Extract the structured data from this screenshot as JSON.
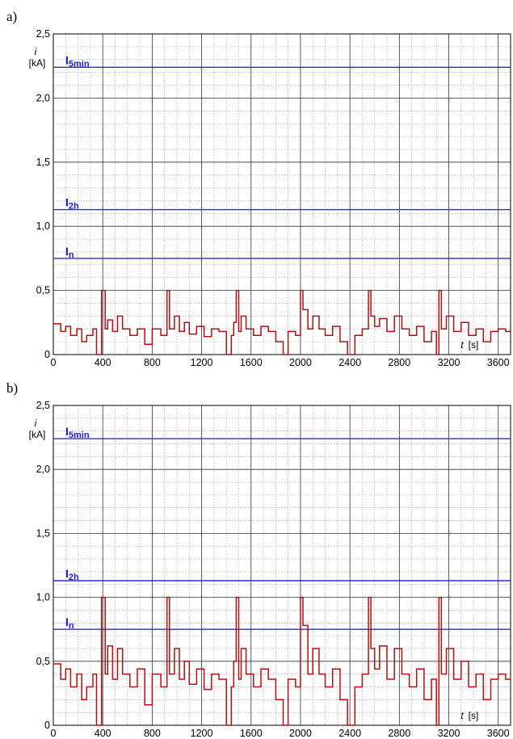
{
  "chart_data": [
    {
      "type": "line",
      "panel_label": "a)",
      "xlabel_var": "t",
      "xlabel_unit": "[s]",
      "ylabel_var": "i",
      "ylabel_unit": "[kA]",
      "xlim": [
        0,
        3700
      ],
      "ylim": [
        0,
        2.5
      ],
      "x_ticks": [
        0,
        400,
        800,
        1200,
        1600,
        2000,
        2400,
        2800,
        3200,
        3600
      ],
      "x_tick_labels": [
        "0",
        "400",
        "800",
        "1200",
        "1600",
        "2000",
        "2400",
        "2800",
        "3200",
        "3600"
      ],
      "y_ticks": [
        0,
        0.5,
        1.0,
        1.5,
        2.0,
        2.5
      ],
      "y_tick_labels": [
        "0",
        "0,5",
        "1,0",
        "1,5",
        "2,0",
        "2,5"
      ],
      "grid": true,
      "reference_lines": [
        {
          "main": "I",
          "sub": "5min",
          "value": 2.24
        },
        {
          "main": "I",
          "sub": "2h",
          "value": 1.13
        },
        {
          "main": "I",
          "sub": "n",
          "value": 0.75
        }
      ],
      "series": [
        {
          "color": "#b01010",
          "x": [
            0,
            60,
            100,
            140,
            190,
            230,
            270,
            320,
            350,
            380,
            390,
            420,
            440,
            480,
            520,
            560,
            620,
            680,
            740,
            800,
            870,
            920,
            940,
            980,
            1020,
            1060,
            1100,
            1160,
            1220,
            1280,
            1340,
            1400,
            1440,
            1460,
            1480,
            1500,
            1520,
            1560,
            1620,
            1680,
            1740,
            1800,
            1860,
            1900,
            1960,
            2000,
            2020,
            2060,
            2100,
            2150,
            2200,
            2260,
            2320,
            2380,
            2440,
            2500,
            2550,
            2570,
            2600,
            2640,
            2700,
            2760,
            2820,
            2880,
            2940,
            3000,
            3060,
            3100,
            3120,
            3140,
            3180,
            3240,
            3300,
            3360,
            3420,
            3480,
            3540,
            3600,
            3660,
            3700
          ],
          "y": [
            0.24,
            0.18,
            0.22,
            0.15,
            0.2,
            0.1,
            0.15,
            0.2,
            0.0,
            0.0,
            0.5,
            0.2,
            0.27,
            0.18,
            0.3,
            0.2,
            0.15,
            0.2,
            0.08,
            0.2,
            0.15,
            0.5,
            0.2,
            0.3,
            0.18,
            0.25,
            0.16,
            0.22,
            0.14,
            0.2,
            0.18,
            0.0,
            0.15,
            0.25,
            0.5,
            0.18,
            0.3,
            0.2,
            0.15,
            0.22,
            0.18,
            0.1,
            0.0,
            0.18,
            0.15,
            0.5,
            0.35,
            0.2,
            0.3,
            0.2,
            0.15,
            0.22,
            0.1,
            0.0,
            0.15,
            0.2,
            0.5,
            0.3,
            0.22,
            0.28,
            0.18,
            0.3,
            0.2,
            0.15,
            0.22,
            0.1,
            0.18,
            0.0,
            0.5,
            0.2,
            0.3,
            0.18,
            0.25,
            0.15,
            0.2,
            0.1,
            0.18,
            0.2,
            0.18,
            0.18
          ]
        }
      ]
    },
    {
      "type": "line",
      "panel_label": "b)",
      "xlabel_var": "t",
      "xlabel_unit": "[s]",
      "ylabel_var": "i",
      "ylabel_unit": "[kA]",
      "xlim": [
        0,
        3700
      ],
      "ylim": [
        0,
        2.5
      ],
      "x_ticks": [
        0,
        400,
        800,
        1200,
        1600,
        2000,
        2400,
        2800,
        3200,
        3600
      ],
      "x_tick_labels": [
        "0",
        "400",
        "800",
        "1200",
        "1600",
        "2000",
        "2400",
        "2800",
        "3200",
        "3600"
      ],
      "y_ticks": [
        0,
        0.5,
        1.0,
        1.5,
        2.0,
        2.5
      ],
      "y_tick_labels": [
        "0",
        "0,5",
        "1,0",
        "1,5",
        "2,0",
        "2,5"
      ],
      "grid": true,
      "reference_lines": [
        {
          "main": "I",
          "sub": "5min",
          "value": 2.24
        },
        {
          "main": "I",
          "sub": "2h",
          "value": 1.13
        },
        {
          "main": "I",
          "sub": "n",
          "value": 0.75
        }
      ],
      "series": [
        {
          "color": "#b01010",
          "x": [
            0,
            60,
            100,
            140,
            190,
            230,
            270,
            320,
            350,
            380,
            390,
            420,
            440,
            480,
            520,
            560,
            620,
            680,
            740,
            800,
            870,
            920,
            940,
            980,
            1020,
            1060,
            1100,
            1160,
            1220,
            1280,
            1340,
            1400,
            1440,
            1460,
            1480,
            1500,
            1520,
            1560,
            1620,
            1680,
            1740,
            1800,
            1860,
            1900,
            1960,
            2000,
            2020,
            2060,
            2100,
            2150,
            2200,
            2260,
            2320,
            2380,
            2440,
            2500,
            2550,
            2570,
            2600,
            2640,
            2700,
            2760,
            2820,
            2880,
            2940,
            3000,
            3060,
            3100,
            3120,
            3140,
            3180,
            3240,
            3300,
            3360,
            3420,
            3480,
            3540,
            3600,
            3660,
            3700
          ],
          "y": [
            0.48,
            0.36,
            0.44,
            0.3,
            0.4,
            0.2,
            0.3,
            0.4,
            0.0,
            0.0,
            1.0,
            0.4,
            0.62,
            0.36,
            0.6,
            0.4,
            0.3,
            0.44,
            0.16,
            0.4,
            0.3,
            1.0,
            0.4,
            0.6,
            0.36,
            0.5,
            0.32,
            0.44,
            0.28,
            0.4,
            0.36,
            0.0,
            0.3,
            0.5,
            1.0,
            0.36,
            0.6,
            0.4,
            0.3,
            0.44,
            0.36,
            0.2,
            0.0,
            0.36,
            0.3,
            1.0,
            0.78,
            0.4,
            0.6,
            0.4,
            0.3,
            0.44,
            0.2,
            0.0,
            0.3,
            0.4,
            1.0,
            0.6,
            0.44,
            0.62,
            0.36,
            0.6,
            0.4,
            0.3,
            0.44,
            0.2,
            0.36,
            0.0,
            1.0,
            0.4,
            0.6,
            0.36,
            0.5,
            0.3,
            0.4,
            0.2,
            0.36,
            0.4,
            0.36,
            0.36
          ]
        }
      ]
    }
  ]
}
